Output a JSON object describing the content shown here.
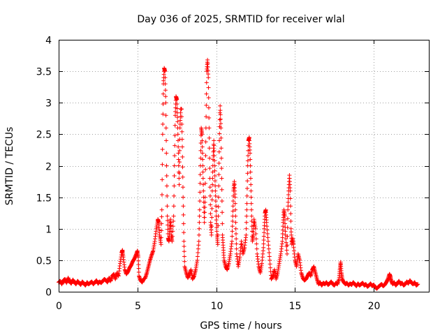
{
  "chart_data": {
    "type": "scatter",
    "title": "Day 036 of 2025, SRMTID for receiver wlal",
    "xlabel": "GPS time / hours",
    "ylabel": "SRMTID / TECUs",
    "xlim": [
      0,
      23.5
    ],
    "ylim": [
      0,
      4
    ],
    "xticks": [
      0,
      5,
      10,
      15,
      20
    ],
    "xtick_labels": [
      "0",
      "5",
      "10",
      "15",
      "20"
    ],
    "yticks": [
      0,
      0.5,
      1,
      1.5,
      2,
      2.5,
      3,
      3.5,
      4
    ],
    "ytick_labels": [
      "0",
      "0.5",
      "1",
      "1.5",
      "2",
      "2.5",
      "3",
      "3.5",
      "4"
    ],
    "grid": true,
    "marker": "+",
    "color": "#ff0000",
    "series": [
      {
        "name": "SRMTID",
        "points": [
          [
            0.0,
            0.15
          ],
          [
            0.1,
            0.17
          ],
          [
            0.2,
            0.12
          ],
          [
            0.3,
            0.18
          ],
          [
            0.4,
            0.2
          ],
          [
            0.5,
            0.14
          ],
          [
            0.6,
            0.22
          ],
          [
            0.7,
            0.16
          ],
          [
            0.8,
            0.13
          ],
          [
            0.9,
            0.19
          ],
          [
            1.0,
            0.15
          ],
          [
            1.1,
            0.12
          ],
          [
            1.2,
            0.17
          ],
          [
            1.3,
            0.14
          ],
          [
            1.4,
            0.11
          ],
          [
            1.5,
            0.16
          ],
          [
            1.6,
            0.13
          ],
          [
            1.7,
            0.1
          ],
          [
            1.8,
            0.15
          ],
          [
            1.9,
            0.12
          ],
          [
            2.0,
            0.14
          ],
          [
            2.1,
            0.16
          ],
          [
            2.2,
            0.12
          ],
          [
            2.3,
            0.15
          ],
          [
            2.4,
            0.18
          ],
          [
            2.5,
            0.13
          ],
          [
            2.6,
            0.16
          ],
          [
            2.7,
            0.14
          ],
          [
            2.8,
            0.17
          ],
          [
            2.9,
            0.2
          ],
          [
            3.0,
            0.18
          ],
          [
            3.1,
            0.15
          ],
          [
            3.2,
            0.22
          ],
          [
            3.3,
            0.17
          ],
          [
            3.4,
            0.25
          ],
          [
            3.5,
            0.28
          ],
          [
            3.6,
            0.2
          ],
          [
            3.7,
            0.3
          ],
          [
            3.8,
            0.25
          ],
          [
            3.9,
            0.45
          ],
          [
            4.0,
            0.62
          ],
          [
            4.05,
            0.66
          ],
          [
            4.1,
            0.55
          ],
          [
            4.2,
            0.35
          ],
          [
            4.3,
            0.28
          ],
          [
            4.4,
            0.32
          ],
          [
            4.5,
            0.38
          ],
          [
            4.6,
            0.42
          ],
          [
            4.7,
            0.48
          ],
          [
            4.8,
            0.52
          ],
          [
            4.9,
            0.58
          ],
          [
            5.0,
            0.65
          ],
          [
            5.05,
            0.55
          ],
          [
            5.1,
            0.25
          ],
          [
            5.2,
            0.18
          ],
          [
            5.3,
            0.15
          ],
          [
            5.4,
            0.2
          ],
          [
            5.5,
            0.22
          ],
          [
            5.6,
            0.3
          ],
          [
            5.7,
            0.4
          ],
          [
            5.8,
            0.5
          ],
          [
            5.9,
            0.58
          ],
          [
            6.0,
            0.65
          ],
          [
            6.1,
            0.8
          ],
          [
            6.2,
            1.0
          ],
          [
            6.3,
            1.15
          ],
          [
            6.35,
            1.1
          ],
          [
            6.4,
            0.9
          ],
          [
            6.5,
            0.75
          ],
          [
            6.55,
            1.3
          ],
          [
            6.6,
            2.5
          ],
          [
            6.65,
            3.3
          ],
          [
            6.7,
            3.55
          ],
          [
            6.75,
            3.5
          ],
          [
            6.8,
            3.0
          ],
          [
            6.85,
            2.0
          ],
          [
            6.9,
            1.2
          ],
          [
            6.95,
            0.85
          ],
          [
            7.0,
            0.8
          ],
          [
            7.05,
            1.0
          ],
          [
            7.1,
            1.15
          ],
          [
            7.15,
            0.9
          ],
          [
            7.2,
            0.8
          ],
          [
            7.3,
            1.2
          ],
          [
            7.35,
            2.0
          ],
          [
            7.4,
            2.8
          ],
          [
            7.45,
            3.1
          ],
          [
            7.5,
            3.05
          ],
          [
            7.55,
            2.7
          ],
          [
            7.6,
            2.2
          ],
          [
            7.65,
            1.7
          ],
          [
            7.7,
            2.6
          ],
          [
            7.75,
            2.9
          ],
          [
            7.8,
            2.9
          ],
          [
            7.85,
            2.3
          ],
          [
            7.9,
            1.5
          ],
          [
            7.95,
            0.8
          ],
          [
            8.0,
            0.4
          ],
          [
            8.1,
            0.3
          ],
          [
            8.2,
            0.22
          ],
          [
            8.3,
            0.28
          ],
          [
            8.4,
            0.35
          ],
          [
            8.5,
            0.2
          ],
          [
            8.6,
            0.25
          ],
          [
            8.7,
            0.35
          ],
          [
            8.8,
            0.5
          ],
          [
            8.9,
            0.8
          ],
          [
            8.95,
            1.3
          ],
          [
            9.0,
            2.0
          ],
          [
            9.05,
            2.6
          ],
          [
            9.1,
            2.5
          ],
          [
            9.15,
            2.0
          ],
          [
            9.2,
            1.5
          ],
          [
            9.25,
            1.1
          ],
          [
            9.3,
            1.5
          ],
          [
            9.35,
            2.6
          ],
          [
            9.4,
            3.5
          ],
          [
            9.45,
            3.68
          ],
          [
            9.5,
            3.4
          ],
          [
            9.55,
            2.6
          ],
          [
            9.6,
            1.8
          ],
          [
            9.65,
            1.1
          ],
          [
            9.7,
            0.9
          ],
          [
            9.75,
            1.6
          ],
          [
            9.8,
            2.1
          ],
          [
            9.85,
            2.4
          ],
          [
            9.9,
            2.0
          ],
          [
            9.95,
            1.6
          ],
          [
            10.0,
            1.2
          ],
          [
            10.05,
            0.9
          ],
          [
            10.1,
            0.75
          ],
          [
            10.15,
            1.5
          ],
          [
            10.2,
            2.4
          ],
          [
            10.25,
            2.95
          ],
          [
            10.3,
            2.6
          ],
          [
            10.35,
            1.8
          ],
          [
            10.4,
            0.9
          ],
          [
            10.45,
            0.7
          ],
          [
            10.5,
            0.5
          ],
          [
            10.6,
            0.4
          ],
          [
            10.7,
            0.35
          ],
          [
            10.8,
            0.45
          ],
          [
            10.9,
            0.6
          ],
          [
            11.0,
            0.8
          ],
          [
            11.05,
            1.2
          ],
          [
            11.1,
            1.6
          ],
          [
            11.15,
            1.75
          ],
          [
            11.2,
            1.5
          ],
          [
            11.25,
            1.0
          ],
          [
            11.3,
            0.6
          ],
          [
            11.4,
            0.4
          ],
          [
            11.5,
            0.55
          ],
          [
            11.6,
            0.8
          ],
          [
            11.7,
            0.6
          ],
          [
            11.8,
            0.7
          ],
          [
            11.9,
            0.9
          ],
          [
            11.95,
            1.4
          ],
          [
            12.0,
            2.0
          ],
          [
            12.05,
            2.4
          ],
          [
            12.1,
            2.45
          ],
          [
            12.15,
            2.2
          ],
          [
            12.2,
            1.7
          ],
          [
            12.25,
            1.2
          ],
          [
            12.3,
            0.8
          ],
          [
            12.35,
            0.9
          ],
          [
            12.4,
            1.15
          ],
          [
            12.5,
            1.0
          ],
          [
            12.6,
            0.6
          ],
          [
            12.7,
            0.4
          ],
          [
            12.8,
            0.3
          ],
          [
            12.9,
            0.45
          ],
          [
            13.0,
            0.7
          ],
          [
            13.05,
            1.0
          ],
          [
            13.1,
            1.25
          ],
          [
            13.15,
            1.3
          ],
          [
            13.2,
            1.1
          ],
          [
            13.3,
            0.8
          ],
          [
            13.4,
            0.5
          ],
          [
            13.5,
            0.2
          ],
          [
            13.6,
            0.25
          ],
          [
            13.7,
            0.35
          ],
          [
            13.8,
            0.2
          ],
          [
            13.9,
            0.3
          ],
          [
            14.0,
            0.45
          ],
          [
            14.1,
            0.6
          ],
          [
            14.2,
            0.8
          ],
          [
            14.25,
            1.1
          ],
          [
            14.3,
            1.3
          ],
          [
            14.35,
            1.2
          ],
          [
            14.4,
            0.9
          ],
          [
            14.5,
            0.6
          ],
          [
            14.55,
            1.3
          ],
          [
            14.6,
            1.6
          ],
          [
            14.65,
            1.85
          ],
          [
            14.7,
            1.6
          ],
          [
            14.75,
            1.0
          ],
          [
            14.8,
            0.75
          ],
          [
            14.85,
            0.85
          ],
          [
            14.9,
            0.75
          ],
          [
            15.0,
            0.5
          ],
          [
            15.1,
            0.4
          ],
          [
            15.2,
            0.6
          ],
          [
            15.3,
            0.5
          ],
          [
            15.4,
            0.3
          ],
          [
            15.5,
            0.22
          ],
          [
            15.6,
            0.18
          ],
          [
            15.7,
            0.2
          ],
          [
            15.8,
            0.25
          ],
          [
            15.9,
            0.3
          ],
          [
            16.0,
            0.25
          ],
          [
            16.1,
            0.35
          ],
          [
            16.2,
            0.4
          ],
          [
            16.3,
            0.3
          ],
          [
            16.4,
            0.2
          ],
          [
            16.5,
            0.12
          ],
          [
            16.6,
            0.15
          ],
          [
            16.7,
            0.1
          ],
          [
            16.8,
            0.14
          ],
          [
            16.9,
            0.12
          ],
          [
            17.0,
            0.15
          ],
          [
            17.1,
            0.11
          ],
          [
            17.2,
            0.13
          ],
          [
            17.3,
            0.16
          ],
          [
            17.4,
            0.12
          ],
          [
            17.5,
            0.1
          ],
          [
            17.6,
            0.14
          ],
          [
            17.7,
            0.12
          ],
          [
            17.8,
            0.2
          ],
          [
            17.85,
            0.35
          ],
          [
            17.9,
            0.47
          ],
          [
            17.95,
            0.3
          ],
          [
            18.0,
            0.2
          ],
          [
            18.1,
            0.15
          ],
          [
            18.2,
            0.12
          ],
          [
            18.3,
            0.14
          ],
          [
            18.4,
            0.1
          ],
          [
            18.5,
            0.13
          ],
          [
            18.6,
            0.11
          ],
          [
            18.7,
            0.15
          ],
          [
            18.8,
            0.12
          ],
          [
            18.9,
            0.09
          ],
          [
            19.0,
            0.13
          ],
          [
            19.1,
            0.1
          ],
          [
            19.2,
            0.12
          ],
          [
            19.3,
            0.14
          ],
          [
            19.4,
            0.1
          ],
          [
            19.5,
            0.12
          ],
          [
            19.6,
            0.08
          ],
          [
            19.7,
            0.1
          ],
          [
            19.8,
            0.13
          ],
          [
            19.9,
            0.09
          ],
          [
            20.0,
            0.11
          ],
          [
            20.1,
            0.07
          ],
          [
            20.2,
            0.05
          ],
          [
            20.3,
            0.08
          ],
          [
            20.4,
            0.1
          ],
          [
            20.5,
            0.12
          ],
          [
            20.6,
            0.09
          ],
          [
            20.7,
            0.11
          ],
          [
            20.8,
            0.15
          ],
          [
            20.9,
            0.2
          ],
          [
            21.0,
            0.28
          ],
          [
            21.05,
            0.25
          ],
          [
            21.1,
            0.18
          ],
          [
            21.2,
            0.12
          ],
          [
            21.3,
            0.15
          ],
          [
            21.4,
            0.1
          ],
          [
            21.5,
            0.13
          ],
          [
            21.6,
            0.17
          ],
          [
            21.7,
            0.12
          ],
          [
            21.8,
            0.14
          ],
          [
            21.9,
            0.1
          ],
          [
            22.0,
            0.12
          ],
          [
            22.1,
            0.16
          ],
          [
            22.2,
            0.13
          ],
          [
            22.3,
            0.18
          ],
          [
            22.4,
            0.14
          ],
          [
            22.5,
            0.12
          ],
          [
            22.6,
            0.15
          ],
          [
            22.7,
            0.1
          ],
          [
            22.8,
            0.12
          ]
        ]
      }
    ]
  }
}
